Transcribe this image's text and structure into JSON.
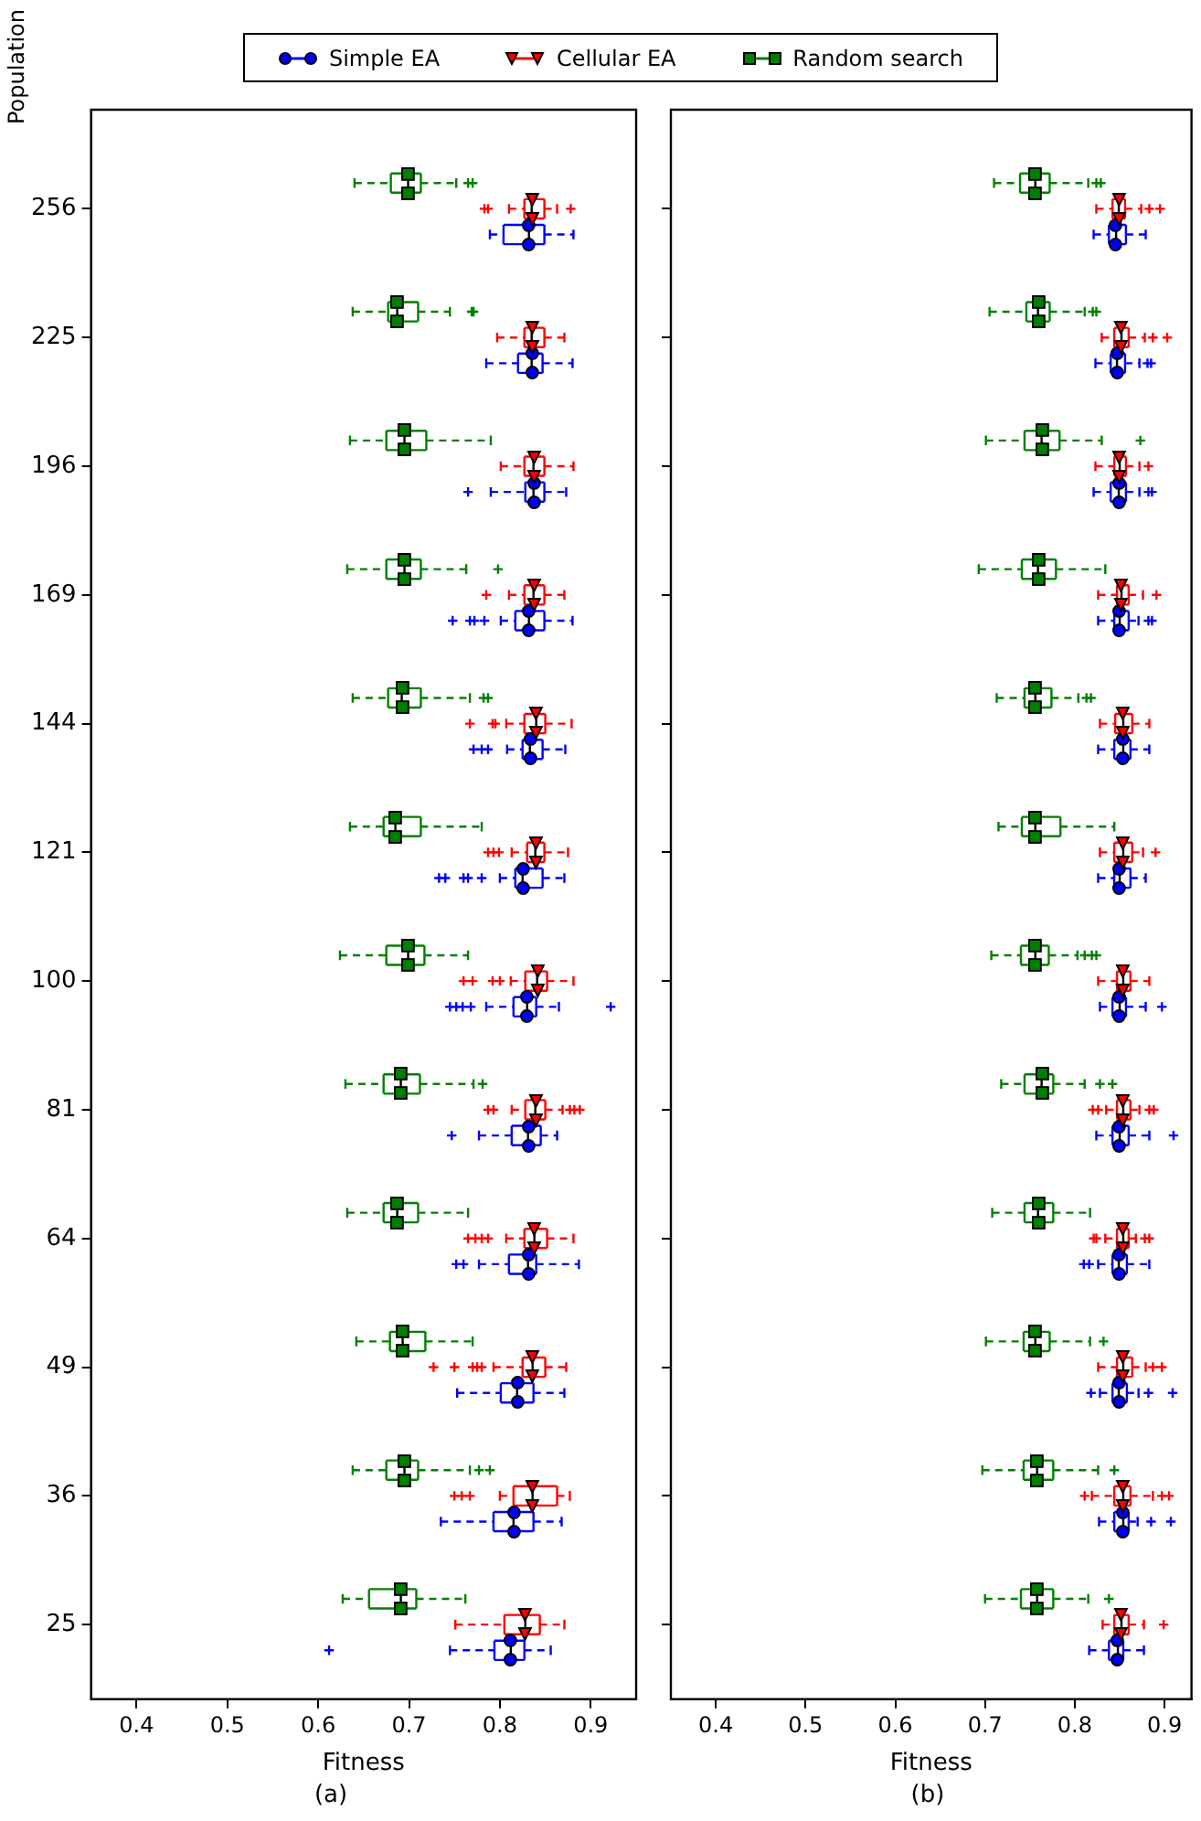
{
  "chart_data": [
    {
      "type": "box",
      "title": "(a)",
      "xlabel": "Fitness",
      "ylabel": "Population",
      "orientation": "horizontal",
      "legend": "top",
      "grid": false,
      "line_style": "dashed",
      "xlim": [
        0.35,
        0.95
      ],
      "xticks": [
        0.4,
        0.5,
        0.6,
        0.7,
        0.8,
        0.9
      ],
      "categories": [
        "256",
        "225",
        "196",
        "169",
        "144",
        "121",
        "100",
        "81",
        "64",
        "49",
        "36",
        "25"
      ],
      "series": [
        {
          "name": "Simple EA",
          "color": "#0000ff",
          "marker": "circle",
          "boxes": [
            {
              "low": 0.789,
              "q1": 0.804,
              "median": 0.832,
              "q3": 0.849,
              "high": 0.881
            },
            {
              "low": 0.785,
              "q1": 0.82,
              "median": 0.835,
              "q3": 0.847,
              "high": 0.88
            },
            {
              "low": 0.79,
              "q1": 0.828,
              "median": 0.837,
              "q3": 0.849,
              "high": 0.873,
              "outliers": [
                0.765
              ]
            },
            {
              "low": 0.801,
              "q1": 0.817,
              "median": 0.832,
              "q3": 0.849,
              "high": 0.88,
              "outliers": [
                0.748,
                0.767,
                0.772,
                0.783
              ]
            },
            {
              "low": 0.808,
              "q1": 0.825,
              "median": 0.833,
              "q3": 0.847,
              "high": 0.872,
              "outliers": [
                0.771,
                0.78,
                0.787
              ]
            },
            {
              "low": 0.8,
              "q1": 0.817,
              "median": 0.825,
              "q3": 0.847,
              "high": 0.871,
              "outliers": [
                0.733,
                0.74,
                0.76,
                0.765,
                0.78
              ]
            },
            {
              "low": 0.785,
              "q1": 0.815,
              "median": 0.83,
              "q3": 0.84,
              "high": 0.865,
              "outliers": [
                0.745,
                0.752,
                0.759,
                0.768,
                0.922
              ]
            },
            {
              "low": 0.777,
              "q1": 0.813,
              "median": 0.831,
              "q3": 0.845,
              "high": 0.863,
              "outliers": [
                0.747
              ]
            },
            {
              "low": 0.777,
              "q1": 0.81,
              "median": 0.831,
              "q3": 0.84,
              "high": 0.887,
              "outliers": [
                0.752,
                0.76
              ]
            },
            {
              "low": 0.753,
              "q1": 0.801,
              "median": 0.819,
              "q3": 0.837,
              "high": 0.871
            },
            {
              "low": 0.735,
              "q1": 0.793,
              "median": 0.815,
              "q3": 0.837,
              "high": 0.868
            },
            {
              "low": 0.745,
              "q1": 0.794,
              "median": 0.812,
              "q3": 0.827,
              "high": 0.856,
              "outliers": [
                0.612
              ]
            }
          ]
        },
        {
          "name": "Cellular EA",
          "color": "#ff0000",
          "marker": "triangle",
          "boxes": [
            {
              "low": 0.81,
              "q1": 0.827,
              "median": 0.835,
              "q3": 0.849,
              "high": 0.863,
              "outliers": [
                0.783,
                0.787,
                0.878
              ]
            },
            {
              "low": 0.797,
              "q1": 0.827,
              "median": 0.835,
              "q3": 0.849,
              "high": 0.871
            },
            {
              "low": 0.801,
              "q1": 0.827,
              "median": 0.837,
              "q3": 0.849,
              "high": 0.881
            },
            {
              "low": 0.81,
              "q1": 0.827,
              "median": 0.837,
              "q3": 0.849,
              "high": 0.871,
              "outliers": [
                0.785
              ]
            },
            {
              "low": 0.807,
              "q1": 0.827,
              "median": 0.84,
              "q3": 0.85,
              "high": 0.879,
              "outliers": [
                0.767,
                0.792,
                0.795
              ]
            },
            {
              "low": 0.813,
              "q1": 0.83,
              "median": 0.839,
              "q3": 0.849,
              "high": 0.875,
              "outliers": [
                0.787,
                0.793,
                0.799
              ]
            },
            {
              "low": 0.812,
              "q1": 0.828,
              "median": 0.841,
              "q3": 0.852,
              "high": 0.881,
              "outliers": [
                0.76,
                0.77,
                0.792,
                0.8
              ]
            },
            {
              "low": 0.813,
              "q1": 0.828,
              "median": 0.839,
              "q3": 0.85,
              "high": 0.869,
              "outliers": [
                0.787,
                0.793,
                0.877,
                0.882,
                0.888
              ]
            },
            {
              "low": 0.807,
              "q1": 0.827,
              "median": 0.838,
              "q3": 0.852,
              "high": 0.881,
              "outliers": [
                0.765,
                0.773,
                0.78,
                0.787
              ]
            },
            {
              "low": 0.793,
              "q1": 0.825,
              "median": 0.836,
              "q3": 0.85,
              "high": 0.873,
              "outliers": [
                0.727,
                0.75,
                0.77,
                0.775,
                0.78
              ]
            },
            {
              "low": 0.8,
              "q1": 0.815,
              "median": 0.836,
              "q3": 0.863,
              "high": 0.877,
              "outliers": [
                0.75,
                0.758,
                0.767
              ]
            },
            {
              "low": 0.751,
              "q1": 0.805,
              "median": 0.828,
              "q3": 0.844,
              "high": 0.871
            }
          ]
        },
        {
          "name": "Random search",
          "color": "#008000",
          "marker": "square",
          "boxes": [
            {
              "low": 0.64,
              "q1": 0.68,
              "median": 0.699,
              "q3": 0.713,
              "high": 0.752,
              "outliers": [
                0.765,
                0.77
              ]
            },
            {
              "low": 0.638,
              "q1": 0.677,
              "median": 0.687,
              "q3": 0.71,
              "high": 0.745,
              "outliers": [
                0.769,
                0.771
              ]
            },
            {
              "low": 0.635,
              "q1": 0.675,
              "median": 0.695,
              "q3": 0.719,
              "high": 0.79
            },
            {
              "low": 0.632,
              "q1": 0.675,
              "median": 0.695,
              "q3": 0.713,
              "high": 0.763,
              "outliers": [
                0.798
              ]
            },
            {
              "low": 0.638,
              "q1": 0.677,
              "median": 0.692,
              "q3": 0.713,
              "high": 0.767,
              "outliers": [
                0.782,
                0.787
              ]
            },
            {
              "low": 0.635,
              "q1": 0.672,
              "median": 0.685,
              "q3": 0.713,
              "high": 0.78
            },
            {
              "low": 0.624,
              "q1": 0.675,
              "median": 0.699,
              "q3": 0.717,
              "high": 0.765
            },
            {
              "low": 0.63,
              "q1": 0.672,
              "median": 0.691,
              "q3": 0.712,
              "high": 0.771,
              "outliers": [
                0.781
              ]
            },
            {
              "low": 0.632,
              "q1": 0.672,
              "median": 0.687,
              "q3": 0.71,
              "high": 0.765
            },
            {
              "low": 0.642,
              "q1": 0.679,
              "median": 0.693,
              "q3": 0.718,
              "high": 0.77
            },
            {
              "low": 0.638,
              "q1": 0.675,
              "median": 0.695,
              "q3": 0.71,
              "high": 0.767,
              "outliers": [
                0.777,
                0.789
              ]
            },
            {
              "low": 0.627,
              "q1": 0.656,
              "median": 0.691,
              "q3": 0.708,
              "high": 0.762
            }
          ]
        }
      ]
    },
    {
      "type": "box",
      "title": "(b)",
      "xlabel": "Fitness",
      "orientation": "horizontal",
      "grid": false,
      "line_style": "dashed",
      "tick_labels": "x",
      "xlim": [
        0.35,
        0.93
      ],
      "xticks": [
        0.4,
        0.5,
        0.6,
        0.7,
        0.8,
        0.9
      ],
      "categories": [
        "256",
        "225",
        "196",
        "169",
        "144",
        "121",
        "100",
        "81",
        "64",
        "49",
        "36",
        "25"
      ],
      "series": [
        {
          "name": "Simple EA",
          "color": "#0000ff",
          "marker": "circle",
          "boxes": [
            {
              "low": 0.821,
              "q1": 0.838,
              "median": 0.846,
              "q3": 0.857,
              "high": 0.879
            },
            {
              "low": 0.823,
              "q1": 0.84,
              "median": 0.847,
              "q3": 0.856,
              "high": 0.872,
              "outliers": [
                0.881,
                0.885
              ]
            },
            {
              "low": 0.821,
              "q1": 0.84,
              "median": 0.849,
              "q3": 0.857,
              "high": 0.872,
              "outliers": [
                0.882,
                0.886
              ]
            },
            {
              "low": 0.826,
              "q1": 0.844,
              "median": 0.85,
              "q3": 0.86,
              "high": 0.871,
              "outliers": [
                0.882,
                0.886
              ]
            },
            {
              "low": 0.826,
              "q1": 0.844,
              "median": 0.854,
              "q3": 0.862,
              "high": 0.883
            },
            {
              "low": 0.826,
              "q1": 0.844,
              "median": 0.85,
              "q3": 0.862,
              "high": 0.879
            },
            {
              "low": 0.828,
              "q1": 0.842,
              "median": 0.85,
              "q3": 0.857,
              "high": 0.879,
              "outliers": [
                0.897
              ]
            },
            {
              "low": 0.824,
              "q1": 0.842,
              "median": 0.85,
              "q3": 0.86,
              "high": 0.883,
              "outliers": [
                0.91
              ]
            },
            {
              "low": 0.826,
              "q1": 0.842,
              "median": 0.849,
              "q3": 0.858,
              "high": 0.883,
              "outliers": [
                0.81,
                0.816
              ]
            },
            {
              "low": 0.828,
              "q1": 0.842,
              "median": 0.849,
              "q3": 0.858,
              "high": 0.871,
              "outliers": [
                0.818,
                0.882,
                0.909
              ]
            },
            {
              "low": 0.827,
              "q1": 0.844,
              "median": 0.854,
              "q3": 0.86,
              "high": 0.87,
              "outliers": [
                0.885,
                0.907
              ]
            },
            {
              "low": 0.816,
              "q1": 0.838,
              "median": 0.848,
              "q3": 0.854,
              "high": 0.877
            }
          ]
        },
        {
          "name": "Cellular EA",
          "color": "#ff0000",
          "marker": "triangle",
          "boxes": [
            {
              "low": 0.824,
              "q1": 0.842,
              "median": 0.849,
              "q3": 0.856,
              "high": 0.874,
              "outliers": [
                0.883,
                0.895
              ]
            },
            {
              "low": 0.83,
              "q1": 0.844,
              "median": 0.852,
              "q3": 0.86,
              "high": 0.878,
              "outliers": [
                0.887,
                0.903
              ]
            },
            {
              "low": 0.823,
              "q1": 0.844,
              "median": 0.85,
              "q3": 0.857,
              "high": 0.872,
              "outliers": [
                0.882
              ]
            },
            {
              "low": 0.826,
              "q1": 0.847,
              "median": 0.852,
              "q3": 0.86,
              "high": 0.876,
              "outliers": [
                0.891
              ]
            },
            {
              "low": 0.828,
              "q1": 0.845,
              "median": 0.854,
              "q3": 0.864,
              "high": 0.883
            },
            {
              "low": 0.828,
              "q1": 0.844,
              "median": 0.854,
              "q3": 0.864,
              "high": 0.876,
              "outliers": [
                0.89
              ]
            },
            {
              "low": 0.826,
              "q1": 0.847,
              "median": 0.854,
              "q3": 0.862,
              "high": 0.883
            },
            {
              "low": 0.835,
              "q1": 0.847,
              "median": 0.854,
              "q3": 0.862,
              "high": 0.872,
              "outliers": [
                0.82,
                0.826,
                0.883,
                0.888
              ]
            },
            {
              "low": 0.834,
              "q1": 0.847,
              "median": 0.854,
              "q3": 0.86,
              "high": 0.868,
              "outliers": [
                0.821,
                0.824,
                0.878,
                0.883
              ]
            },
            {
              "low": 0.826,
              "q1": 0.847,
              "median": 0.854,
              "q3": 0.864,
              "high": 0.879,
              "outliers": [
                0.887,
                0.897
              ]
            },
            {
              "low": 0.819,
              "q1": 0.844,
              "median": 0.854,
              "q3": 0.862,
              "high": 0.887,
              "outliers": [
                0.811,
                0.897,
                0.905
              ]
            },
            {
              "low": 0.831,
              "q1": 0.844,
              "median": 0.852,
              "q3": 0.86,
              "high": 0.877,
              "outliers": [
                0.899
              ]
            }
          ]
        },
        {
          "name": "Random search",
          "color": "#008000",
          "marker": "square",
          "boxes": [
            {
              "low": 0.71,
              "q1": 0.739,
              "median": 0.756,
              "q3": 0.772,
              "high": 0.815,
              "outliers": [
                0.824,
                0.829
              ]
            },
            {
              "low": 0.705,
              "q1": 0.746,
              "median": 0.759,
              "q3": 0.772,
              "high": 0.811,
              "outliers": [
                0.82,
                0.824
              ]
            },
            {
              "low": 0.701,
              "q1": 0.744,
              "median": 0.763,
              "q3": 0.783,
              "high": 0.83,
              "outliers": [
                0.873
              ]
            },
            {
              "low": 0.693,
              "q1": 0.741,
              "median": 0.759,
              "q3": 0.779,
              "high": 0.834
            },
            {
              "low": 0.713,
              "q1": 0.744,
              "median": 0.756,
              "q3": 0.774,
              "high": 0.804,
              "outliers": [
                0.813,
                0.818
              ]
            },
            {
              "low": 0.715,
              "q1": 0.741,
              "median": 0.756,
              "q3": 0.784,
              "high": 0.844
            },
            {
              "low": 0.707,
              "q1": 0.74,
              "median": 0.756,
              "q3": 0.771,
              "high": 0.803,
              "outliers": [
                0.811,
                0.819,
                0.824
              ]
            },
            {
              "low": 0.718,
              "q1": 0.744,
              "median": 0.763,
              "q3": 0.776,
              "high": 0.811,
              "outliers": [
                0.828,
                0.842
              ]
            },
            {
              "low": 0.708,
              "q1": 0.744,
              "median": 0.759,
              "q3": 0.776,
              "high": 0.817
            },
            {
              "low": 0.701,
              "q1": 0.743,
              "median": 0.756,
              "q3": 0.772,
              "high": 0.817,
              "outliers": [
                0.832
              ]
            },
            {
              "low": 0.697,
              "q1": 0.743,
              "median": 0.758,
              "q3": 0.776,
              "high": 0.826,
              "outliers": [
                0.844
              ]
            },
            {
              "low": 0.7,
              "q1": 0.74,
              "median": 0.758,
              "q3": 0.776,
              "high": 0.815,
              "outliers": [
                0.838
              ]
            }
          ]
        }
      ]
    }
  ]
}
